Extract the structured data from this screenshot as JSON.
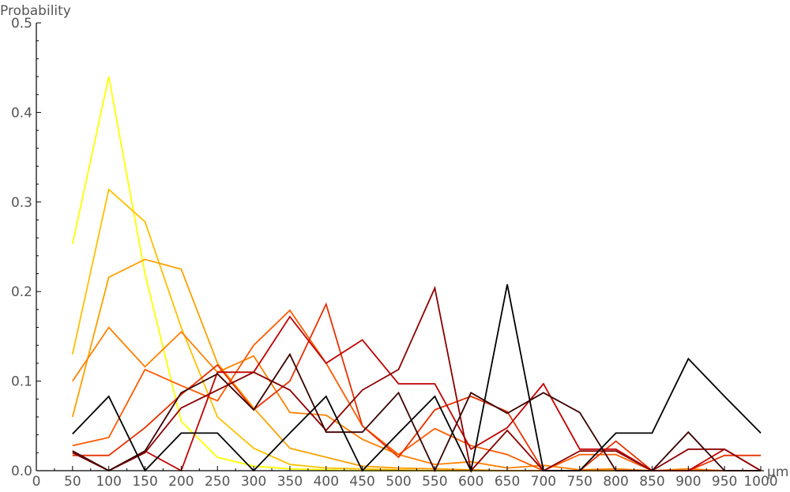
{
  "chart_data": {
    "type": "line",
    "title": "",
    "xlabel": "μm",
    "ylabel": "Probability",
    "xlim": [
      0,
      1000
    ],
    "ylim": [
      0,
      0.5
    ],
    "x_ticks": [
      0,
      50,
      100,
      150,
      200,
      250,
      300,
      350,
      400,
      450,
      500,
      550,
      600,
      650,
      700,
      750,
      800,
      850,
      900,
      950,
      1000
    ],
    "y_ticks": [
      0.0,
      0.1,
      0.2,
      0.3,
      0.4,
      0.5
    ],
    "y_tick_labels": [
      "0.0",
      "0.1",
      "0.2",
      "0.3",
      "0.4",
      "0.5"
    ],
    "grid": false,
    "legend": "none",
    "x": [
      50,
      100,
      150,
      200,
      250,
      300,
      350,
      400,
      450,
      500,
      550,
      600,
      650,
      700,
      750,
      800,
      850,
      900,
      950,
      1000
    ],
    "series": [
      {
        "color": "#ffff00",
        "values": [
          0.253,
          0.44,
          0.22,
          0.055,
          0.015,
          0.005,
          0.002,
          0.001,
          0.0,
          0.0,
          0.0,
          0.0,
          0.0,
          0.0,
          0.0,
          0.0,
          0.0,
          0.0,
          0.0,
          0.0
        ]
      },
      {
        "color": "#ffc000",
        "values": [
          0.13,
          0.314,
          0.278,
          0.16,
          0.06,
          0.025,
          0.007,
          0.003,
          0.002,
          0.001,
          0.0,
          0.0,
          0.0,
          0.0,
          0.0,
          0.0,
          0.0,
          0.0,
          0.0,
          0.0
        ]
      },
      {
        "color": "#ffa000",
        "values": [
          0.06,
          0.216,
          0.236,
          0.225,
          0.12,
          0.07,
          0.025,
          0.015,
          0.005,
          0.003,
          0.002,
          0.001,
          0.0,
          0.0,
          0.0,
          0.0,
          0.0,
          0.0,
          0.0,
          0.0
        ]
      },
      {
        "color": "#ff8000",
        "values": [
          0.1,
          0.16,
          0.116,
          0.155,
          0.11,
          0.128,
          0.065,
          0.062,
          0.035,
          0.018,
          0.007,
          0.01,
          0.003,
          0.006,
          0.001,
          0.002,
          0.0,
          0.002,
          0.0,
          0.0
        ]
      },
      {
        "color": "#ff5a00",
        "values": [
          0.028,
          0.037,
          0.113,
          0.095,
          0.078,
          0.14,
          0.179,
          0.12,
          0.05,
          0.018,
          0.047,
          0.028,
          0.018,
          0.0,
          0.018,
          0.018,
          0.0,
          0.0,
          0.0,
          0.0
        ]
      },
      {
        "color": "#e83000",
        "values": [
          0.017,
          0.017,
          0.048,
          0.085,
          0.118,
          0.068,
          0.1,
          0.186,
          0.05,
          0.015,
          0.068,
          0.083,
          0.066,
          0.0,
          0.0,
          0.033,
          0.0,
          0.0,
          0.017,
          0.017
        ]
      },
      {
        "color": "#c00000",
        "values": [
          0.022,
          0.0,
          0.022,
          0.0,
          0.11,
          0.11,
          0.172,
          0.12,
          0.146,
          0.097,
          0.097,
          0.024,
          0.048,
          0.097,
          0.024,
          0.024,
          0.0,
          0.0,
          0.024,
          0.0
        ]
      },
      {
        "color": "#8b0000",
        "values": [
          0.02,
          0.0,
          0.02,
          0.07,
          0.09,
          0.11,
          0.09,
          0.045,
          0.09,
          0.113,
          0.204,
          0.0,
          0.045,
          0.0,
          0.022,
          0.022,
          0.0,
          0.024,
          0.024,
          0.0
        ]
      },
      {
        "color": "#3a0000",
        "values": [
          0.022,
          0.0,
          0.022,
          0.087,
          0.108,
          0.068,
          0.13,
          0.043,
          0.043,
          0.087,
          0.0,
          0.087,
          0.064,
          0.087,
          0.065,
          0.0,
          0.0,
          0.043,
          0.0,
          0.0
        ]
      },
      {
        "color": "#000000",
        "values": [
          0.041,
          0.083,
          0.0,
          0.042,
          0.042,
          0.0,
          0.042,
          0.083,
          0.0,
          0.042,
          0.083,
          0.0,
          0.208,
          0.0,
          0.0,
          0.042,
          0.042,
          0.125,
          0.083,
          0.042
        ]
      }
    ]
  }
}
